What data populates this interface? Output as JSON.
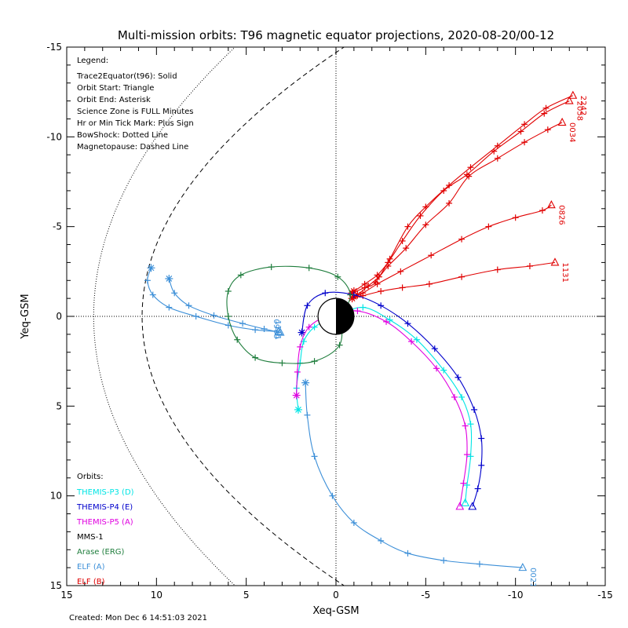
{
  "chart_data": {
    "type": "line",
    "title": "Multi-mission orbits: T96 magnetic equator projections, 2020-08-20/00-12",
    "xlabel": "Xeq-GSM",
    "ylabel": "Yeq-GSM",
    "xlim": [
      15,
      -15
    ],
    "ylim": [
      -15,
      15
    ],
    "x_ticks": [
      15,
      10,
      5,
      0,
      -5,
      -10,
      -15
    ],
    "x_tick_labels": [
      "15",
      "10",
      "5",
      "0",
      "-5",
      "-10",
      "-15"
    ],
    "y_ticks": [
      -15,
      -10,
      -5,
      0,
      5,
      10,
      15
    ],
    "y_tick_labels": [
      "-15",
      "-10",
      "-5",
      "0",
      "5",
      "10",
      "15"
    ],
    "created": "Created: Mon Dec  6 14:51:03 2021",
    "legend_title": "Legend:",
    "legend_lines": [
      "Trace2Equator(t96): Solid",
      "Orbit Start: Triangle",
      "Orbit End: Asterisk",
      "Science Zone is FULL Minutes",
      "Hr or Min Tick Mark: Plus Sign",
      "BowShock: Dotted Line",
      "Magnetopause: Dashed Line"
    ],
    "orbits_title": "Orbits:",
    "orbit_labels": [
      {
        "name": "THEMIS-P3 (D)",
        "color": "#00e5e5"
      },
      {
        "name": "THEMIS-P4 (E)",
        "color": "#0000cc"
      },
      {
        "name": "THEMIS-P5 (A)",
        "color": "#e000e0"
      },
      {
        "name": "MMS-1",
        "color": "#000000"
      },
      {
        "name": "Arase (ERG)",
        "color": "#1e7d3c"
      },
      {
        "name": "ELF (A)",
        "color": "#3c8fd8"
      },
      {
        "name": "ELF (B)",
        "color": "#e00000"
      }
    ],
    "series": [
      {
        "name": "ELF (B)",
        "color": "#e00000",
        "label": "2242",
        "points": [
          [
            -0.9,
            -1.3
          ],
          [
            -1.6,
            -1.6
          ],
          [
            -2.2,
            -1.9
          ],
          [
            -3.0,
            -3.2
          ],
          [
            -4.0,
            -5.0
          ],
          [
            -5.0,
            -6.1
          ],
          [
            -6.3,
            -7.3
          ],
          [
            -7.5,
            -8.3
          ],
          [
            -9.0,
            -9.5
          ],
          [
            -10.5,
            -10.7
          ],
          [
            -11.7,
            -11.6
          ],
          [
            -13.2,
            -12.3
          ]
        ]
      },
      {
        "name": "ELF (B)",
        "color": "#e00000",
        "label": "2058",
        "points": [
          [
            -1.0,
            -1.4
          ],
          [
            -1.6,
            -1.8
          ],
          [
            -2.3,
            -2.3
          ],
          [
            -2.9,
            -3.0
          ],
          [
            -3.7,
            -4.2
          ],
          [
            -4.7,
            -5.6
          ],
          [
            -6.0,
            -7.0
          ],
          [
            -7.3,
            -7.9
          ],
          [
            -8.8,
            -9.2
          ],
          [
            -10.3,
            -10.3
          ],
          [
            -11.6,
            -11.3
          ],
          [
            -13.0,
            -12.0
          ]
        ]
      },
      {
        "name": "ELF (B)",
        "color": "#e00000",
        "label": "0034",
        "points": [
          [
            -1.2,
            -1.2
          ],
          [
            -1.8,
            -1.7
          ],
          [
            -2.4,
            -2.2
          ],
          [
            -2.9,
            -2.8
          ],
          [
            -3.9,
            -3.8
          ],
          [
            -5.0,
            -5.1
          ],
          [
            -6.3,
            -6.3
          ],
          [
            -7.4,
            -7.8
          ],
          [
            -9.0,
            -8.8
          ],
          [
            -10.5,
            -9.7
          ],
          [
            -11.8,
            -10.4
          ],
          [
            -12.6,
            -10.8
          ]
        ]
      },
      {
        "name": "ELF (B)",
        "color": "#e00000",
        "label": "0826",
        "points": [
          [
            -1.0,
            -1.1
          ],
          [
            -1.5,
            -1.3
          ],
          [
            -2.3,
            -1.8
          ],
          [
            -3.6,
            -2.5
          ],
          [
            -5.3,
            -3.4
          ],
          [
            -7.0,
            -4.3
          ],
          [
            -8.5,
            -5.0
          ],
          [
            -10.0,
            -5.5
          ],
          [
            -11.5,
            -5.9
          ],
          [
            -12.0,
            -6.2
          ]
        ]
      },
      {
        "name": "ELF (B)",
        "color": "#e00000",
        "label": "1131",
        "points": [
          [
            -0.9,
            -1.0
          ],
          [
            -1.5,
            -1.15
          ],
          [
            -2.5,
            -1.4
          ],
          [
            -3.7,
            -1.6
          ],
          [
            -5.2,
            -1.8
          ],
          [
            -7.0,
            -2.2
          ],
          [
            -9.0,
            -2.6
          ],
          [
            -10.8,
            -2.8
          ],
          [
            -12.2,
            -3.0
          ]
        ]
      },
      {
        "name": "ELF (A)",
        "color": "#3c8fd8",
        "label": "0960",
        "points": [
          [
            10.3,
            -2.7
          ],
          [
            10.5,
            -2.0
          ],
          [
            10.2,
            -1.2
          ],
          [
            9.3,
            -0.5
          ],
          [
            7.8,
            0.0
          ],
          [
            6.0,
            0.5
          ],
          [
            4.5,
            0.75
          ],
          [
            3.2,
            0.85
          ]
        ]
      },
      {
        "name": "ELF (A)",
        "color": "#3c8fd8",
        "label": "1111",
        "points": [
          [
            9.3,
            -2.1
          ],
          [
            9.0,
            -1.3
          ],
          [
            8.2,
            -0.6
          ],
          [
            6.8,
            -0.05
          ],
          [
            5.2,
            0.4
          ],
          [
            4.0,
            0.7
          ],
          [
            3.1,
            0.9
          ]
        ]
      },
      {
        "name": "ELF (A)",
        "color": "#3c8fd8",
        "label": "0021",
        "points": [
          [
            1.7,
            3.7
          ],
          [
            1.6,
            5.5
          ],
          [
            1.2,
            7.8
          ],
          [
            0.2,
            10.0
          ],
          [
            -1.0,
            11.5
          ],
          [
            -2.5,
            12.5
          ],
          [
            -4.0,
            13.2
          ],
          [
            -6.0,
            13.6
          ],
          [
            -8.0,
            13.8
          ],
          [
            -10.4,
            14.0
          ]
        ]
      },
      {
        "name": "THEMIS-P3 (D)",
        "color": "#00e5e5",
        "label": "",
        "points": [
          [
            2.1,
            5.2
          ],
          [
            2.2,
            4.0
          ],
          [
            2.0,
            2.6
          ],
          [
            1.8,
            1.4
          ],
          [
            1.2,
            0.6
          ],
          [
            0.0,
            0.0
          ],
          [
            -1.5,
            -0.5
          ],
          [
            -3.0,
            0.2
          ],
          [
            -4.5,
            1.3
          ],
          [
            -6.0,
            3.0
          ],
          [
            -7.0,
            4.5
          ],
          [
            -7.5,
            6.0
          ],
          [
            -7.5,
            7.8
          ],
          [
            -7.3,
            9.4
          ],
          [
            -7.2,
            10.4
          ]
        ]
      },
      {
        "name": "THEMIS-P4 (E)",
        "color": "#0000cc",
        "label": "",
        "points": [
          [
            1.9,
            0.9
          ],
          [
            1.6,
            -0.6
          ],
          [
            0.6,
            -1.3
          ],
          [
            -1.0,
            -1.2
          ],
          [
            -2.5,
            -0.6
          ],
          [
            -4.0,
            0.4
          ],
          [
            -5.5,
            1.8
          ],
          [
            -6.8,
            3.4
          ],
          [
            -7.7,
            5.2
          ],
          [
            -8.1,
            6.8
          ],
          [
            -8.1,
            8.3
          ],
          [
            -7.9,
            9.6
          ],
          [
            -7.6,
            10.6
          ]
        ]
      },
      {
        "name": "THEMIS-P5 (A)",
        "color": "#e000e0",
        "label": "",
        "points": [
          [
            2.2,
            4.4
          ],
          [
            2.15,
            3.1
          ],
          [
            2.0,
            1.7
          ],
          [
            1.5,
            0.6
          ],
          [
            0.3,
            -0.1
          ],
          [
            -1.2,
            -0.3
          ],
          [
            -2.8,
            0.3
          ],
          [
            -4.2,
            1.4
          ],
          [
            -5.6,
            2.9
          ],
          [
            -6.6,
            4.5
          ],
          [
            -7.2,
            6.1
          ],
          [
            -7.3,
            7.7
          ],
          [
            -7.1,
            9.3
          ],
          [
            -6.9,
            10.6
          ]
        ]
      },
      {
        "name": "Arase (ERG)",
        "color": "#1e7d3c",
        "label": "",
        "points": [
          [
            -0.3,
            0.0
          ],
          [
            -0.8,
            -1.2
          ],
          [
            -0.1,
            -2.2
          ],
          [
            1.5,
            -2.7
          ],
          [
            3.6,
            -2.75
          ],
          [
            5.3,
            -2.3
          ],
          [
            6.0,
            -1.4
          ],
          [
            6.0,
            0.0
          ],
          [
            5.5,
            1.3
          ],
          [
            4.5,
            2.3
          ],
          [
            3.0,
            2.6
          ],
          [
            1.2,
            2.5
          ],
          [
            -0.2,
            1.6
          ],
          [
            -0.3,
            0.0
          ]
        ]
      }
    ],
    "earth_radius": 1.0,
    "bow_shock_nose": 13.5,
    "magnetopause_nose": 10.8
  }
}
